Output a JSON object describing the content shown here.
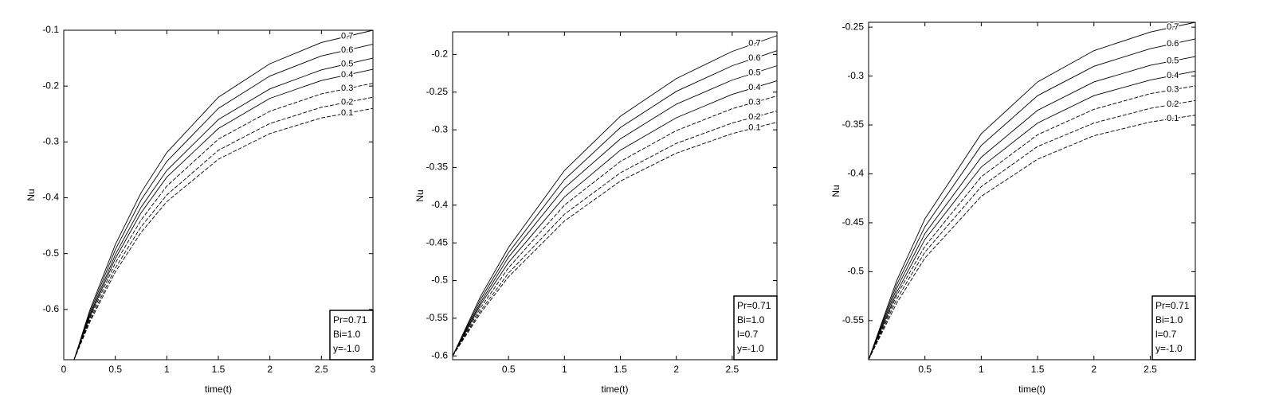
{
  "chart_data": [
    {
      "type": "line",
      "xlabel": "time(t)",
      "ylabel": "Nu",
      "x": [
        0.1,
        0.25,
        0.5,
        0.75,
        1,
        1.5,
        2,
        2.5,
        3
      ],
      "xlim": [
        0,
        3
      ],
      "ylim": [
        -0.69,
        -0.1
      ],
      "xticks": [
        0,
        0.5,
        1,
        1.5,
        2,
        2.5,
        3
      ],
      "yticks": [
        -0.6,
        -0.5,
        -0.4,
        -0.3,
        -0.2,
        -0.1
      ],
      "legend_position": "lower right",
      "annotation": [
        "Pr=0.71",
        "Bi=1.0",
        "y=-1.0"
      ],
      "series": [
        {
          "name": "0.1",
          "color": "#000000",
          "values": [
            -0.69,
            -0.624,
            -0.533,
            -0.462,
            -0.407,
            -0.331,
            -0.285,
            -0.257,
            -0.24
          ]
        },
        {
          "name": "0.2",
          "color": "#000000",
          "values": [
            -0.69,
            -0.621,
            -0.526,
            -0.452,
            -0.395,
            -0.315,
            -0.267,
            -0.238,
            -0.22
          ]
        },
        {
          "name": "0.3",
          "color": "#000000",
          "values": [
            -0.69,
            -0.617,
            -0.517,
            -0.44,
            -0.379,
            -0.295,
            -0.245,
            -0.214,
            -0.195
          ]
        },
        {
          "name": "0.4",
          "color": "#000000",
          "values": [
            -0.69,
            -0.614,
            -0.509,
            -0.427,
            -0.363,
            -0.276,
            -0.222,
            -0.19,
            -0.17
          ]
        },
        {
          "name": "0.5",
          "color": "#000000",
          "values": [
            -0.69,
            -0.611,
            -0.502,
            -0.417,
            -0.351,
            -0.26,
            -0.205,
            -0.171,
            -0.15
          ]
        },
        {
          "name": "0.6",
          "color": "#000000",
          "values": [
            -0.69,
            -0.607,
            -0.493,
            -0.404,
            -0.335,
            -0.24,
            -0.182,
            -0.146,
            -0.125
          ]
        },
        {
          "name": "0.7",
          "color": "#000000",
          "values": [
            -0.69,
            -0.603,
            -0.484,
            -0.391,
            -0.319,
            -0.22,
            -0.16,
            -0.122,
            -0.1
          ]
        }
      ]
    },
    {
      "type": "line",
      "xlabel": "time(t)",
      "ylabel": "Nu",
      "x": [
        0,
        0.25,
        0.5,
        1,
        1.5,
        2,
        2.5,
        2.9
      ],
      "xlim": [
        0,
        2.9
      ],
      "ylim": [
        -0.605,
        -0.17
      ],
      "xticks": [
        0.5,
        1,
        1.5,
        2,
        2.5
      ],
      "yticks": [
        -0.6,
        -0.55,
        -0.5,
        -0.45,
        -0.4,
        -0.35,
        -0.3,
        -0.25,
        -0.2
      ],
      "legend_position": "lower right",
      "annotation": [
        "Pr=0.71",
        "Bi=1.0",
        "l=0.7",
        "y=-1.0"
      ],
      "series": [
        {
          "name": "0.1",
          "color": "#000000",
          "values": [
            -0.6,
            -0.543,
            -0.495,
            -0.421,
            -0.368,
            -0.331,
            -0.305,
            -0.29
          ]
        },
        {
          "name": "0.2",
          "color": "#000000",
          "values": [
            -0.6,
            -0.54,
            -0.49,
            -0.412,
            -0.357,
            -0.318,
            -0.291,
            -0.275
          ]
        },
        {
          "name": "0.3",
          "color": "#000000",
          "values": [
            -0.6,
            -0.536,
            -0.483,
            -0.4,
            -0.342,
            -0.301,
            -0.272,
            -0.255
          ]
        },
        {
          "name": "0.4",
          "color": "#000000",
          "values": [
            -0.6,
            -0.532,
            -0.476,
            -0.389,
            -0.327,
            -0.284,
            -0.253,
            -0.235
          ]
        },
        {
          "name": "0.5",
          "color": "#000000",
          "values": [
            -0.6,
            -0.529,
            -0.469,
            -0.377,
            -0.312,
            -0.266,
            -0.234,
            -0.215
          ]
        },
        {
          "name": "0.6",
          "color": "#000000",
          "values": [
            -0.6,
            -0.525,
            -0.463,
            -0.366,
            -0.297,
            -0.249,
            -0.215,
            -0.195
          ]
        },
        {
          "name": "0.7",
          "color": "#000000",
          "values": [
            -0.6,
            -0.521,
            -0.456,
            -0.354,
            -0.282,
            -0.232,
            -0.196,
            -0.175
          ]
        }
      ]
    },
    {
      "type": "line",
      "xlabel": "time(t)",
      "ylabel": "Nu",
      "x": [
        0,
        0.25,
        0.5,
        1,
        1.5,
        2,
        2.5,
        2.9
      ],
      "xlim": [
        0,
        2.9
      ],
      "ylim": [
        -0.59,
        -0.245
      ],
      "xticks": [
        0.5,
        1,
        1.5,
        2,
        2.5
      ],
      "yticks": [
        -0.55,
        -0.5,
        -0.45,
        -0.4,
        -0.35,
        -0.3,
        -0.25
      ],
      "legend_position": "lower right",
      "annotation": [
        "Pr=0.71",
        "Bi=1.0",
        "l=0.7",
        "y=-1.0"
      ],
      "series": [
        {
          "name": "0.1",
          "color": "#000000",
          "values": [
            -0.59,
            -0.532,
            -0.486,
            -0.423,
            -0.385,
            -0.361,
            -0.347,
            -0.34
          ]
        },
        {
          "name": "0.2",
          "color": "#000000",
          "values": [
            -0.59,
            -0.528,
            -0.48,
            -0.413,
            -0.372,
            -0.348,
            -0.333,
            -0.325
          ]
        },
        {
          "name": "0.3",
          "color": "#000000",
          "values": [
            -0.59,
            -0.524,
            -0.474,
            -0.403,
            -0.36,
            -0.334,
            -0.318,
            -0.31
          ]
        },
        {
          "name": "0.4",
          "color": "#000000",
          "values": [
            -0.59,
            -0.521,
            -0.467,
            -0.393,
            -0.348,
            -0.32,
            -0.304,
            -0.295
          ]
        },
        {
          "name": "0.5",
          "color": "#000000",
          "values": [
            -0.59,
            -0.517,
            -0.461,
            -0.383,
            -0.335,
            -0.306,
            -0.289,
            -0.28
          ]
        },
        {
          "name": "0.6",
          "color": "#000000",
          "values": [
            -0.59,
            -0.513,
            -0.454,
            -0.371,
            -0.32,
            -0.29,
            -0.272,
            -0.262
          ]
        },
        {
          "name": "0.7",
          "color": "#000000",
          "values": [
            -0.59,
            -0.509,
            -0.446,
            -0.359,
            -0.306,
            -0.274,
            -0.255,
            -0.245
          ]
        }
      ]
    }
  ]
}
